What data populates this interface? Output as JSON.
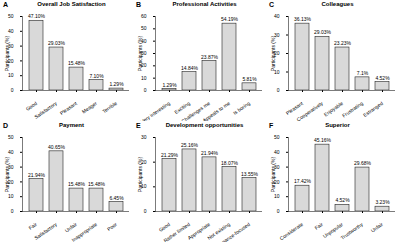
{
  "chart_data": [
    {
      "type": "bar",
      "panel_label": "A",
      "title": "Overall Job Satisfaction",
      "y_label": "Participants (%)",
      "categories": [
        "Good",
        "Satisfactory",
        "Pleasant",
        "Meager",
        "Terrible"
      ],
      "values": [
        47.1,
        29.03,
        15.48,
        7.1,
        1.29
      ],
      "value_labels": [
        "47.10%",
        "29.03%",
        "15.48%",
        "7.10%",
        "1.29%"
      ],
      "color": "#d9d9d9",
      "ylim": [
        0,
        50
      ],
      "yticks": [
        0,
        10,
        20,
        30,
        40,
        50
      ],
      "data_labels": true
    },
    {
      "type": "bar",
      "panel_label": "B",
      "title": "Professional Activities",
      "y_label": "Participants (%)",
      "categories": [
        "Very interesting",
        "Exciting",
        "Challenges me",
        "Appeals to me",
        "Is boring"
      ],
      "values": [
        1.29,
        14.84,
        23.87,
        54.19,
        5.81
      ],
      "value_labels": [
        "1.29%",
        "14.84%",
        "23.87%",
        "54.19%",
        "5.81%"
      ],
      "color": "#d9d9d9",
      "ylim": [
        0,
        60
      ],
      "yticks": [
        0,
        10,
        20,
        30,
        40,
        50,
        60
      ],
      "data_labels": true
    },
    {
      "type": "bar",
      "panel_label": "C",
      "title": "Colleagues",
      "y_label": "Participants (%)",
      "categories": [
        "Pleasant",
        "Cooperatively",
        "Enjoyable",
        "Frustrating",
        "Estranged"
      ],
      "values": [
        36.13,
        29.03,
        23.23,
        7.1,
        4.52
      ],
      "value_labels": [
        "36.13%",
        "29.03%",
        "23.23%",
        "7.1%",
        "4.52%"
      ],
      "color": "#d9d9d9",
      "ylim": [
        0,
        40
      ],
      "yticks": [
        0,
        10,
        20,
        30,
        40
      ],
      "data_labels": true
    },
    {
      "type": "bar",
      "panel_label": "D",
      "title": "Payment",
      "y_label": "Participants (%)",
      "categories": [
        "Fair",
        "Satisfactory",
        "Unfair",
        "Inappropriate",
        "Poor"
      ],
      "values": [
        21.94,
        40.65,
        15.48,
        15.48,
        6.45
      ],
      "value_labels": [
        "21.94%",
        "40.65%",
        "15.48%",
        "15.48%",
        "6.45%"
      ],
      "color": "#d9d9d9",
      "ylim": [
        0,
        50
      ],
      "yticks": [
        0,
        10,
        20,
        30,
        40,
        50
      ],
      "data_labels": true
    },
    {
      "type": "bar",
      "panel_label": "E",
      "title": "Development opportunities",
      "y_label": "Participants (%)",
      "categories": [
        "Good",
        "Rather limited",
        "Appropriate",
        "Not existing",
        "Performance-focused"
      ],
      "values": [
        21.29,
        25.16,
        21.94,
        18.07,
        13.55
      ],
      "value_labels": [
        "21.29%",
        "25.16%",
        "21.94%",
        "18.07%",
        "13.55%"
      ],
      "color": "#d9d9d9",
      "ylim": [
        0,
        30
      ],
      "yticks": [
        0,
        10,
        20,
        30
      ],
      "data_labels": true
    },
    {
      "type": "bar",
      "panel_label": "F",
      "title": "Superior",
      "y_label": "Participants (%)",
      "categories": [
        "Considerate",
        "Fair",
        "Unpopular",
        "Trustworthy",
        "Unfair"
      ],
      "values": [
        17.42,
        45.16,
        4.52,
        29.68,
        3.23
      ],
      "value_labels": [
        "17.42%",
        "45.16%",
        "4.52%",
        "29.68%",
        "3.23%"
      ],
      "color": "#d9d9d9",
      "ylim": [
        0,
        50
      ],
      "yticks": [
        0,
        10,
        20,
        30,
        40,
        50
      ],
      "data_labels": true
    }
  ]
}
